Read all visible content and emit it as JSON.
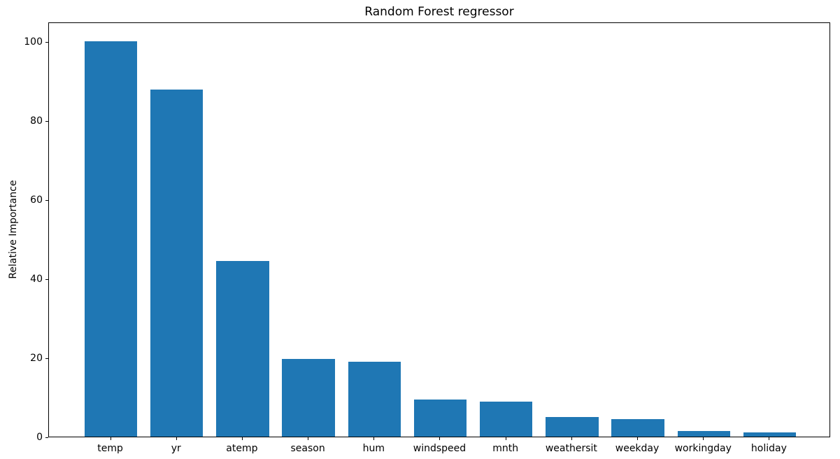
{
  "figure": {
    "background": "#ffffff",
    "text_color": "#000000"
  },
  "chart_data": {
    "type": "bar",
    "title": "Random Forest regressor",
    "xlabel": "",
    "ylabel": "Relative Importance",
    "categories": [
      "temp",
      "yr",
      "atemp",
      "season",
      "hum",
      "windspeed",
      "mnth",
      "weathersit",
      "weekday",
      "workingday",
      "holiday"
    ],
    "values": [
      100.0,
      87.8,
      44.4,
      19.6,
      19.0,
      9.3,
      8.8,
      5.0,
      4.4,
      1.4,
      1.1
    ],
    "bar_color": "#1f77b4",
    "bar_width_fraction": 0.8,
    "ylim": [
      0,
      105
    ],
    "xlim": [
      -0.94,
      10.93
    ],
    "yticks": [
      0,
      20,
      40,
      60,
      80,
      100
    ],
    "grid": false,
    "legend": "none"
  }
}
